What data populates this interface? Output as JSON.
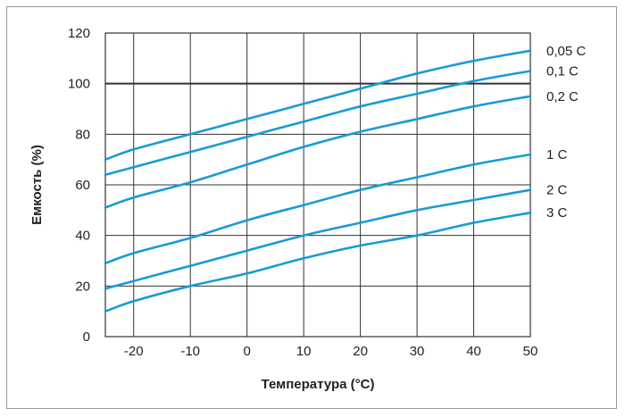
{
  "chart_data": {
    "type": "line",
    "xlabel": "Температура (°C)",
    "ylabel": "Емкость (%)",
    "xlim": [
      -25,
      50
    ],
    "ylim": [
      0,
      120
    ],
    "x_ticks": [
      -20,
      -10,
      0,
      10,
      20,
      30,
      40,
      50
    ],
    "x_tick_labels": [
      "-20",
      "-10",
      "0",
      "10",
      "20",
      "30",
      "40",
      "50"
    ],
    "y_ticks": [
      0,
      20,
      40,
      60,
      80,
      100,
      120
    ],
    "y_tick_labels": [
      "0",
      "20",
      "40",
      "60",
      "80",
      "100",
      "120"
    ],
    "grid": true,
    "reference_line_y": 100,
    "line_color": "#1a9ad6",
    "x": [
      -25,
      -20,
      -10,
      0,
      10,
      20,
      30,
      40,
      50
    ],
    "series": [
      {
        "name": "0,05 C",
        "values": [
          70,
          74,
          80,
          86,
          92,
          98,
          104,
          109,
          113
        ]
      },
      {
        "name": "0,1 C",
        "values": [
          64,
          67,
          73,
          79,
          85,
          91,
          96,
          101,
          105
        ]
      },
      {
        "name": "0,2 C",
        "values": [
          51,
          55,
          61,
          68,
          75,
          81,
          86,
          91,
          95
        ]
      },
      {
        "name": "1 C",
        "values": [
          29,
          33,
          39,
          46,
          52,
          58,
          63,
          68,
          72
        ]
      },
      {
        "name": "2 C",
        "values": [
          19,
          22,
          28,
          34,
          40,
          45,
          50,
          54,
          58
        ]
      },
      {
        "name": "3 C",
        "values": [
          10,
          14,
          20,
          25,
          31,
          36,
          40,
          45,
          49
        ]
      }
    ]
  }
}
